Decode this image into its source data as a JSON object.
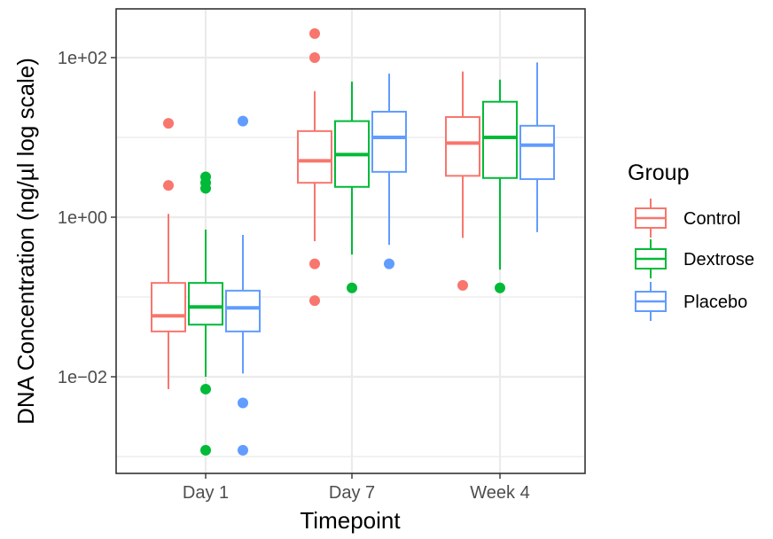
{
  "chart_data": {
    "type": "box",
    "xlabel": "Timepoint",
    "ylabel": "DNA Concentration (ng/µl log scale)",
    "yscale": "log10",
    "ylim": [
      0.0009,
      500
    ],
    "grid": true,
    "legend_placement": "right",
    "categories": [
      "Day 1",
      "Day 7",
      "Week 4"
    ],
    "y_ticks": [
      {
        "value": 0.01,
        "label": "1e−02"
      },
      {
        "value": 1,
        "label": "1e+00"
      },
      {
        "value": 100,
        "label": "1e+02"
      }
    ],
    "legend": {
      "title": "Group",
      "entries": [
        "Control",
        "Dextrose",
        "Placebo"
      ]
    },
    "series": [
      {
        "name": "Control",
        "color": "#F8766D",
        "boxes": [
          {
            "whisker_low": 0.007,
            "q1": 0.037,
            "median": 0.058,
            "q3": 0.15,
            "whisker_high": 1.1,
            "outliers": [
              2.5,
              15
            ]
          },
          {
            "whisker_low": 0.5,
            "q1": 2.7,
            "median": 5.1,
            "q3": 12,
            "whisker_high": 38,
            "outliers": [
              0.09,
              0.26,
              100,
              200
            ]
          },
          {
            "whisker_low": 0.55,
            "q1": 3.3,
            "median": 8.5,
            "q3": 18,
            "whisker_high": 67,
            "outliers": [
              0.14
            ]
          }
        ]
      },
      {
        "name": "Dextrose",
        "color": "#00BA38",
        "boxes": [
          {
            "whisker_low": 0.01,
            "q1": 0.045,
            "median": 0.075,
            "q3": 0.15,
            "whisker_high": 0.7,
            "outliers": [
              0.0012,
              0.007,
              2.3,
              2.7,
              3.2
            ]
          },
          {
            "whisker_low": 0.34,
            "q1": 2.4,
            "median": 6.1,
            "q3": 16,
            "whisker_high": 50,
            "outliers": [
              0.13
            ]
          },
          {
            "whisker_low": 0.22,
            "q1": 3.1,
            "median": 10,
            "q3": 28,
            "whisker_high": 53,
            "outliers": [
              0.13
            ]
          }
        ]
      },
      {
        "name": "Placebo",
        "color": "#619CFF",
        "boxes": [
          {
            "whisker_low": 0.011,
            "q1": 0.037,
            "median": 0.073,
            "q3": 0.12,
            "whisker_high": 0.6,
            "outliers": [
              0.0012,
              0.0047,
              16
            ]
          },
          {
            "whisker_low": 0.45,
            "q1": 3.7,
            "median": 10,
            "q3": 21,
            "whisker_high": 63,
            "outliers": [
              0.26
            ]
          },
          {
            "whisker_low": 0.65,
            "q1": 3.0,
            "median": 8.0,
            "q3": 14,
            "whisker_high": 87,
            "outliers": []
          }
        ]
      }
    ]
  }
}
